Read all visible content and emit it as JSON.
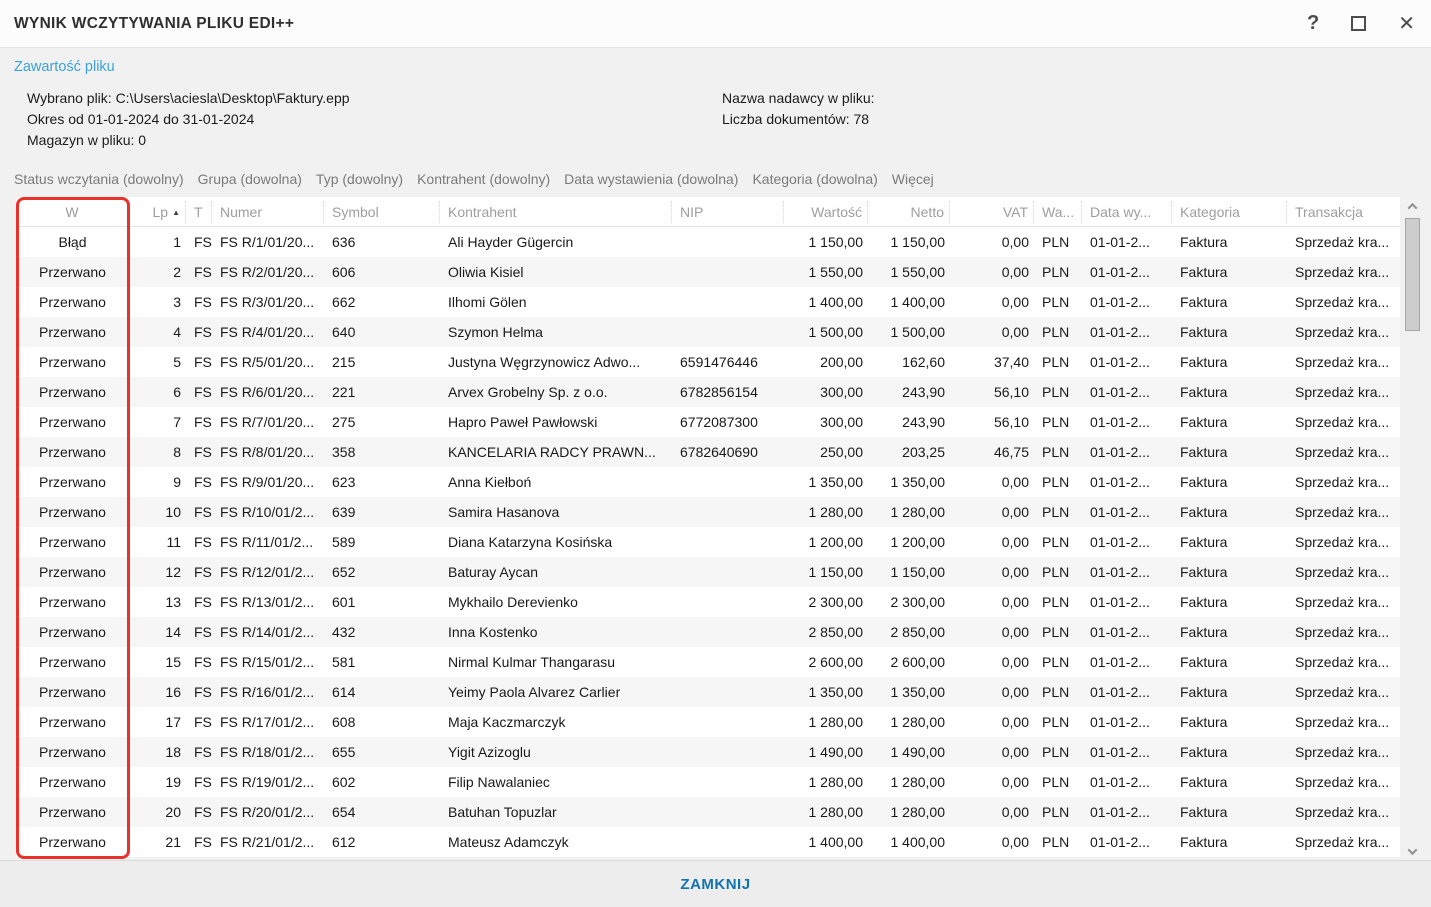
{
  "window": {
    "title": "WYNIK WCZYTYWANIA PLIKU EDI++",
    "controls": {
      "help": "?",
      "close": "✕"
    }
  },
  "header": {
    "section_link": "Zawartość pliku"
  },
  "file_info": {
    "selected_file": "Wybrano plik: C:\\Users\\aciesla\\Desktop\\Faktury.epp",
    "period": "Okres od 01-01-2024 do 31-01-2024",
    "warehouse": "Magazyn w pliku: 0",
    "sender_name": "Nazwa nadawcy w pliku:",
    "documents_count": "Liczba dokumentów: 78"
  },
  "filters": {
    "items": [
      "Status wczytania (dowolny)",
      "Grupa (dowolna)",
      "Typ (dowolny)",
      "Kontrahent (dowolny)",
      "Data wystawienia (dowolna)",
      "Kategoria (dowolna)",
      "Więcej"
    ]
  },
  "table": {
    "sort_column": "lp",
    "sort_indicator": "▲",
    "columns": [
      {
        "id": "w",
        "label": "W",
        "align": "center"
      },
      {
        "id": "lp",
        "label": "Lp",
        "align": "right"
      },
      {
        "id": "t",
        "label": "T",
        "align": "left"
      },
      {
        "id": "numer",
        "label": "Numer",
        "align": "left"
      },
      {
        "id": "symbol",
        "label": "Symbol",
        "align": "left"
      },
      {
        "id": "kontrahent",
        "label": "Kontrahent",
        "align": "left"
      },
      {
        "id": "nip",
        "label": "NIP",
        "align": "left"
      },
      {
        "id": "wartosc",
        "label": "Wartość",
        "align": "right"
      },
      {
        "id": "netto",
        "label": "Netto",
        "align": "right"
      },
      {
        "id": "vat",
        "label": "VAT",
        "align": "right"
      },
      {
        "id": "waluta",
        "label": "Wa...",
        "align": "left"
      },
      {
        "id": "data_wystawienia",
        "label": "Data wy...",
        "align": "left"
      },
      {
        "id": "kategoria",
        "label": "Kategoria",
        "align": "left"
      },
      {
        "id": "transakcja",
        "label": "Transakcja",
        "align": "left"
      }
    ],
    "rows": [
      [
        "Błąd",
        "1",
        "FS",
        "FS R/1/01/20...",
        "636",
        "Ali Hayder Gügercin",
        "",
        "1 150,00",
        "1 150,00",
        "0,00",
        "PLN",
        "01-01-2...",
        "Faktura",
        "Sprzedaż kra..."
      ],
      [
        "Przerwano",
        "2",
        "FS",
        "FS R/2/01/20...",
        "606",
        "Oliwia Kisiel",
        "",
        "1 550,00",
        "1 550,00",
        "0,00",
        "PLN",
        "01-01-2...",
        "Faktura",
        "Sprzedaż kra..."
      ],
      [
        "Przerwano",
        "3",
        "FS",
        "FS R/3/01/20...",
        "662",
        "Ilhomi Gölen",
        "",
        "1 400,00",
        "1 400,00",
        "0,00",
        "PLN",
        "01-01-2...",
        "Faktura",
        "Sprzedaż kra..."
      ],
      [
        "Przerwano",
        "4",
        "FS",
        "FS R/4/01/20...",
        "640",
        "Szymon Helma",
        "",
        "1 500,00",
        "1 500,00",
        "0,00",
        "PLN",
        "01-01-2...",
        "Faktura",
        "Sprzedaż kra..."
      ],
      [
        "Przerwano",
        "5",
        "FS",
        "FS R/5/01/20...",
        "215",
        "Justyna Węgrzynowicz Adwo...",
        "6591476446",
        "200,00",
        "162,60",
        "37,40",
        "PLN",
        "01-01-2...",
        "Faktura",
        "Sprzedaż kra..."
      ],
      [
        "Przerwano",
        "6",
        "FS",
        "FS R/6/01/20...",
        "221",
        "Arvex Grobelny Sp. z o.o.",
        "6782856154",
        "300,00",
        "243,90",
        "56,10",
        "PLN",
        "01-01-2...",
        "Faktura",
        "Sprzedaż kra..."
      ],
      [
        "Przerwano",
        "7",
        "FS",
        "FS R/7/01/20...",
        "275",
        "Hapro Paweł Pawłowski",
        "6772087300",
        "300,00",
        "243,90",
        "56,10",
        "PLN",
        "01-01-2...",
        "Faktura",
        "Sprzedaż kra..."
      ],
      [
        "Przerwano",
        "8",
        "FS",
        "FS R/8/01/20...",
        "358",
        "KANCELARIA RADCY PRAWN...",
        "6782640690",
        "250,00",
        "203,25",
        "46,75",
        "PLN",
        "01-01-2...",
        "Faktura",
        "Sprzedaż kra..."
      ],
      [
        "Przerwano",
        "9",
        "FS",
        "FS R/9/01/20...",
        "623",
        "Anna Kiełboń",
        "",
        "1 350,00",
        "1 350,00",
        "0,00",
        "PLN",
        "01-01-2...",
        "Faktura",
        "Sprzedaż kra..."
      ],
      [
        "Przerwano",
        "10",
        "FS",
        "FS R/10/01/2...",
        "639",
        "Samira Hasanova",
        "",
        "1 280,00",
        "1 280,00",
        "0,00",
        "PLN",
        "01-01-2...",
        "Faktura",
        "Sprzedaż kra..."
      ],
      [
        "Przerwano",
        "11",
        "FS",
        "FS R/11/01/2...",
        "589",
        "Diana Katarzyna  Kosińska",
        "",
        "1 200,00",
        "1 200,00",
        "0,00",
        "PLN",
        "01-01-2...",
        "Faktura",
        "Sprzedaż kra..."
      ],
      [
        "Przerwano",
        "12",
        "FS",
        "FS R/12/01/2...",
        "652",
        "Baturay Aycan",
        "",
        "1 150,00",
        "1 150,00",
        "0,00",
        "PLN",
        "01-01-2...",
        "Faktura",
        "Sprzedaż kra..."
      ],
      [
        "Przerwano",
        "13",
        "FS",
        "FS R/13/01/2...",
        "601",
        "Mykhailo Derevienko",
        "",
        "2 300,00",
        "2 300,00",
        "0,00",
        "PLN",
        "01-01-2...",
        "Faktura",
        "Sprzedaż kra..."
      ],
      [
        "Przerwano",
        "14",
        "FS",
        "FS R/14/01/2...",
        "432",
        "Inna  Kostenko",
        "",
        "2 850,00",
        "2 850,00",
        "0,00",
        "PLN",
        "01-01-2...",
        "Faktura",
        "Sprzedaż kra..."
      ],
      [
        "Przerwano",
        "15",
        "FS",
        "FS R/15/01/2...",
        "581",
        "Nirmal Kulmar Thangarasu",
        "",
        "2 600,00",
        "2 600,00",
        "0,00",
        "PLN",
        "01-01-2...",
        "Faktura",
        "Sprzedaż kra..."
      ],
      [
        "Przerwano",
        "16",
        "FS",
        "FS R/16/01/2...",
        "614",
        "Yeimy Paola Alvarez Carlier",
        "",
        "1 350,00",
        "1 350,00",
        "0,00",
        "PLN",
        "01-01-2...",
        "Faktura",
        "Sprzedaż kra..."
      ],
      [
        "Przerwano",
        "17",
        "FS",
        "FS R/17/01/2...",
        "608",
        "Maja Kaczmarczyk",
        "",
        "1 280,00",
        "1 280,00",
        "0,00",
        "PLN",
        "01-01-2...",
        "Faktura",
        "Sprzedaż kra..."
      ],
      [
        "Przerwano",
        "18",
        "FS",
        "FS R/18/01/2...",
        "655",
        "Yigit  Azizoglu",
        "",
        "1 490,00",
        "1 490,00",
        "0,00",
        "PLN",
        "01-01-2...",
        "Faktura",
        "Sprzedaż kra..."
      ],
      [
        "Przerwano",
        "19",
        "FS",
        "FS R/19/01/2...",
        "602",
        "Filip Nawalaniec",
        "",
        "1 280,00",
        "1 280,00",
        "0,00",
        "PLN",
        "01-01-2...",
        "Faktura",
        "Sprzedaż kra..."
      ],
      [
        "Przerwano",
        "20",
        "FS",
        "FS R/20/01/2...",
        "654",
        "Batuhan  Topuzlar",
        "",
        "1 280,00",
        "1 280,00",
        "0,00",
        "PLN",
        "01-01-2...",
        "Faktura",
        "Sprzedaż kra..."
      ],
      [
        "Przerwano",
        "21",
        "FS",
        "FS R/21/01/2...",
        "612",
        "Mateusz Adamczyk",
        "",
        "1 400,00",
        "1 400,00",
        "0,00",
        "PLN",
        "01-01-2...",
        "Faktura",
        "Sprzedaż kra..."
      ]
    ]
  },
  "footer": {
    "close_label": "ZAMKNIJ"
  },
  "annotation": {
    "color": "#e8322c",
    "target": "W-column-highlight"
  }
}
